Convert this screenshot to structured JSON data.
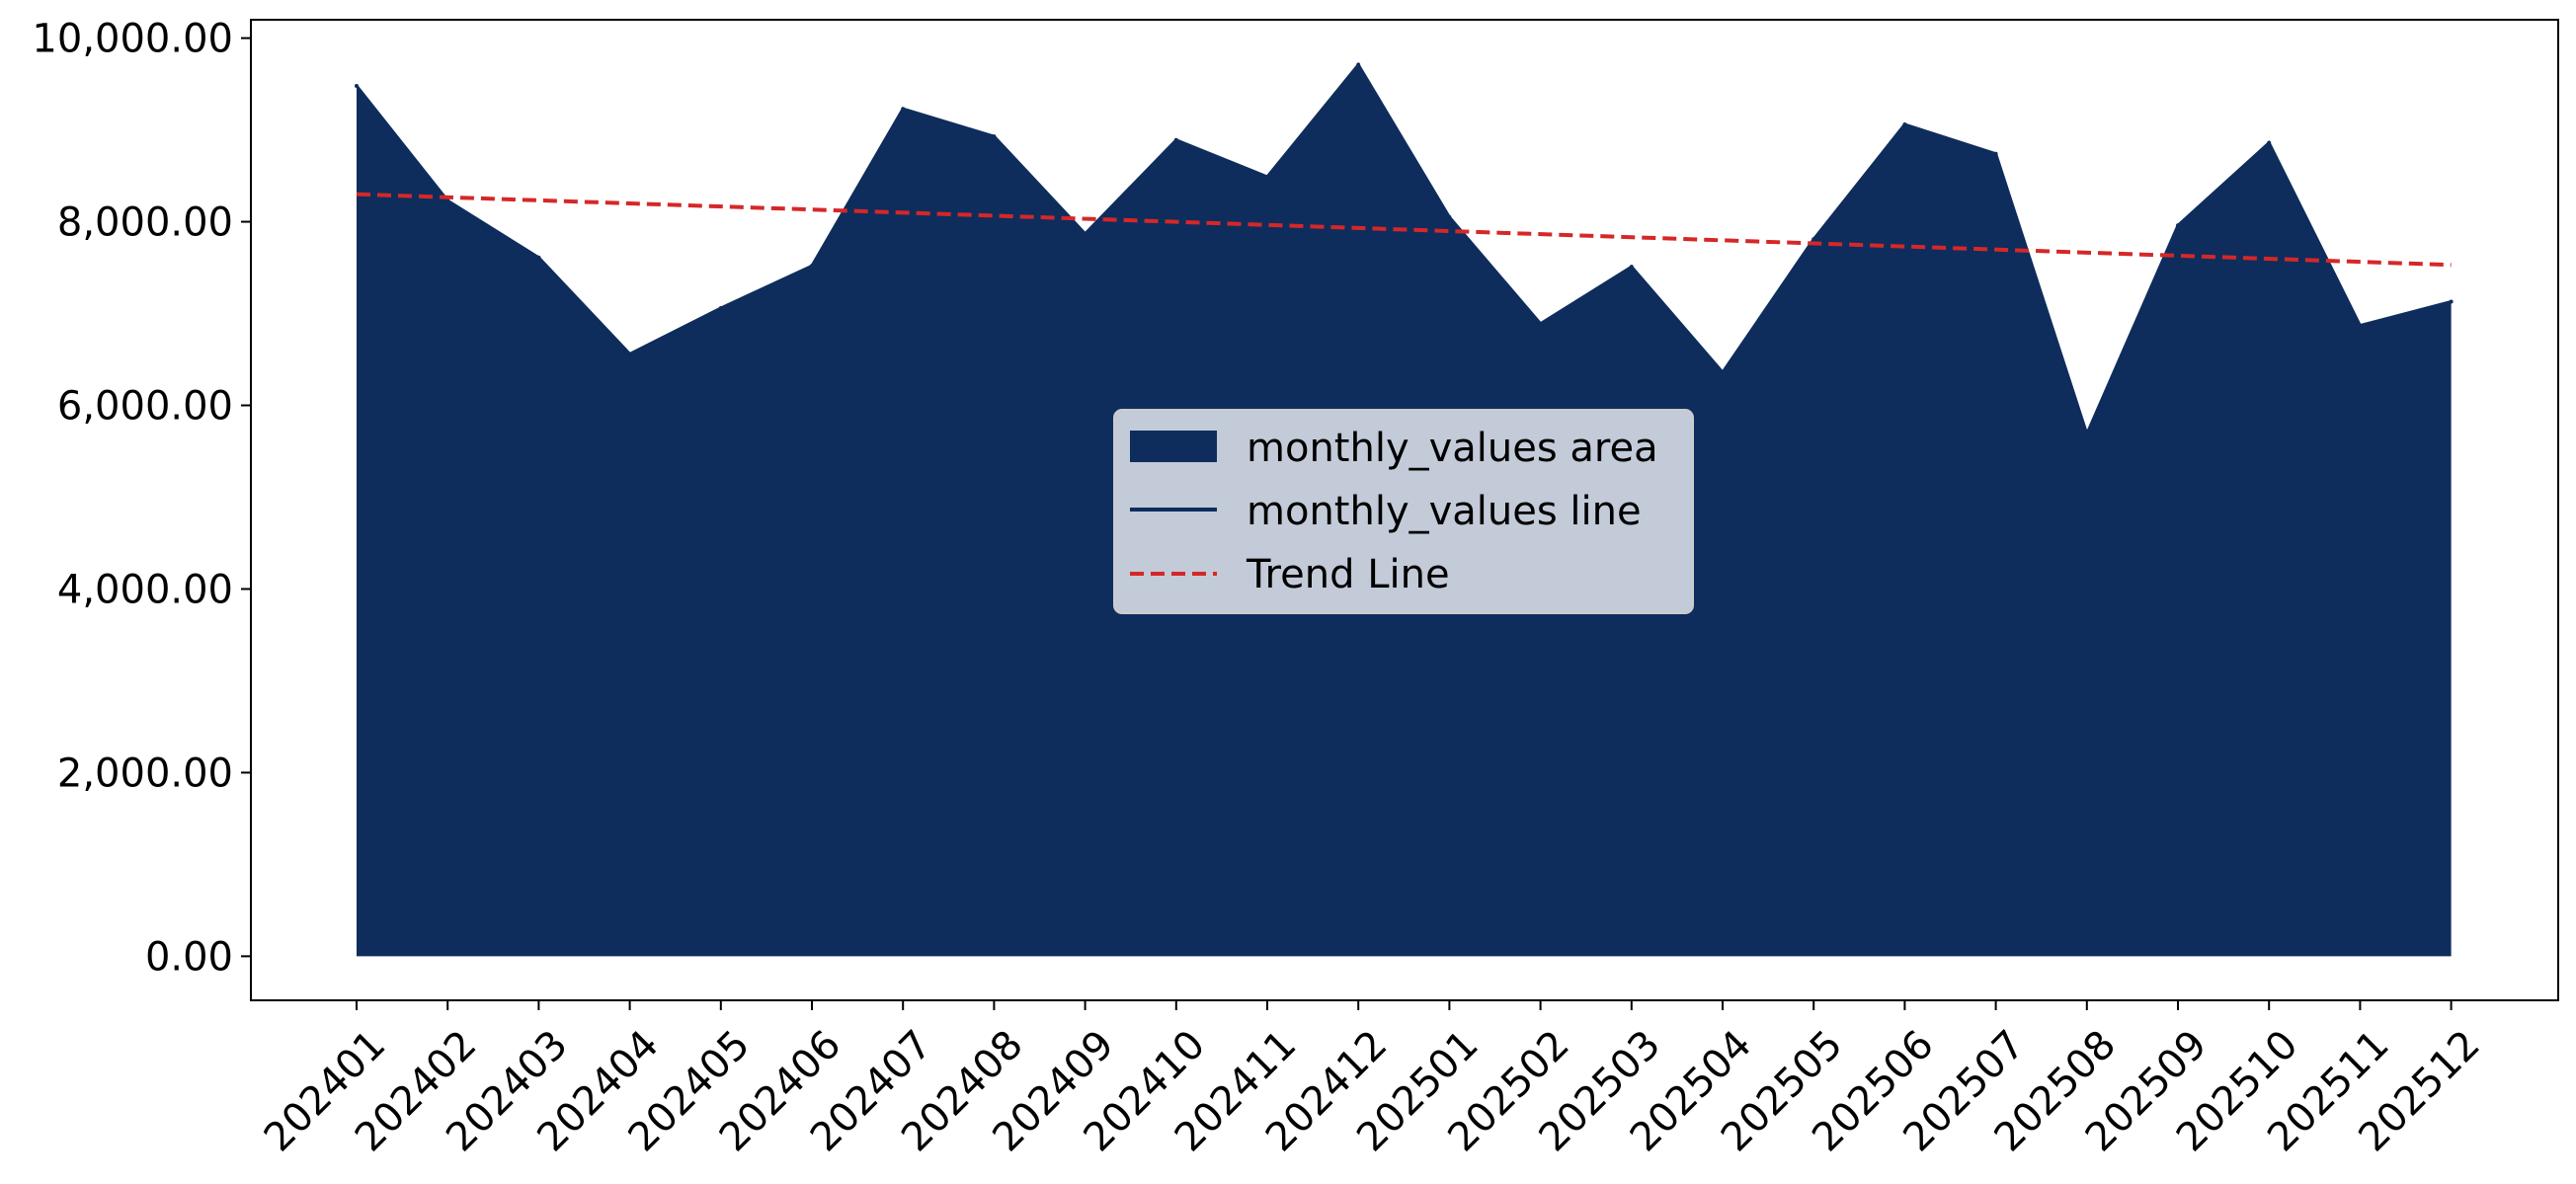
{
  "chart_data": {
    "type": "area",
    "categories": [
      "202401",
      "202402",
      "202403",
      "202404",
      "202405",
      "202406",
      "202407",
      "202408",
      "202409",
      "202410",
      "202411",
      "202412",
      "202501",
      "202502",
      "202503",
      "202504",
      "202505",
      "202506",
      "202507",
      "202508",
      "202509",
      "202510",
      "202511",
      "202512"
    ],
    "series": [
      {
        "name": "monthly_values area",
        "values": [
          9480,
          8230,
          7610,
          6560,
          7060,
          7520,
          9230,
          8930,
          7870,
          8890,
          8490,
          9710,
          8050,
          6890,
          7510,
          6360,
          7810,
          9060,
          8740,
          5690,
          7960,
          8860,
          6870,
          7130
        ]
      }
    ],
    "trend": {
      "name": "Trend Line",
      "start": 8300,
      "end": 7530
    },
    "legend": {
      "placement": "center",
      "entries": [
        {
          "label": "monthly_values area",
          "kind": "patch"
        },
        {
          "label": "monthly_values line",
          "kind": "line"
        },
        {
          "label": "Trend Line",
          "kind": "dashed"
        }
      ]
    },
    "title": "",
    "xlabel": "",
    "ylabel": "",
    "ylim": [
      -480,
      10200
    ],
    "yticks": [
      "0.00",
      "2,000.00",
      "4,000.00",
      "6,000.00",
      "8,000.00",
      "10,000.00"
    ],
    "ytick_values": [
      0,
      2000,
      4000,
      6000,
      8000,
      10000
    ],
    "grid": false,
    "colors": {
      "area": "#0e2d5c",
      "line": "#0e2d5c",
      "trend": "#d62728",
      "legend_bg": "#cdd3de",
      "legend_border": "#cccccc"
    }
  }
}
